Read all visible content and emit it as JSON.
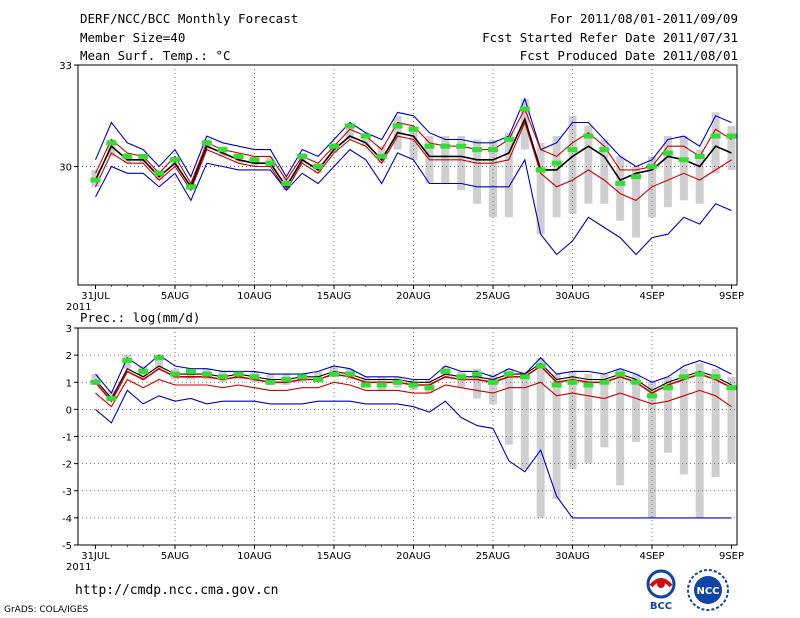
{
  "header": {
    "title": "DERF/NCC/BCC Monthly Forecast",
    "member_size": "Member Size=40",
    "variable": "Mean Surf. Temp.: °C",
    "forecast_range": "For 2011/08/01-2011/09/09",
    "started_refer": "Fcst Started Refer Date 2011/07/31",
    "produced": "Fcst Produced Date 2011/08/01"
  },
  "footer": {
    "url": "http://cmdp.ncc.cma.gov.cn",
    "grads": "GrADS: COLA/IGES",
    "logo_bcc": "BCC",
    "logo_ncc": "NCC"
  },
  "chart_data": [
    {
      "type": "line",
      "title": "Mean Surf. Temp.: °C",
      "ylim": [
        26.5,
        33
      ],
      "yticks": [
        "33",
        "30"
      ],
      "x_ticks": [
        "31JUL",
        "5AUG",
        "10AUG",
        "15AUG",
        "20AUG",
        "25AUG",
        "30AUG",
        "4SEP",
        "9SEP"
      ],
      "x_year": "2011",
      "days": 41,
      "series": [
        {
          "name": "ensemble max",
          "color": "#0000cc",
          "values": [
            30.2,
            31.3,
            30.7,
            30.5,
            30.0,
            30.5,
            29.7,
            30.9,
            30.7,
            30.6,
            30.5,
            30.5,
            29.7,
            30.5,
            30.3,
            30.8,
            31.3,
            31.0,
            30.8,
            31.6,
            31.5,
            31.0,
            30.8,
            30.8,
            30.7,
            30.7,
            30.9,
            32.0,
            30.5,
            30.7,
            31.3,
            31.3,
            30.8,
            30.3,
            30.0,
            30.2,
            30.8,
            30.9,
            30.6,
            31.5,
            31.3
          ]
        },
        {
          "name": "upper percentile",
          "color": "#cc0000",
          "values": [
            29.8,
            30.8,
            30.4,
            30.3,
            29.8,
            30.3,
            29.5,
            30.7,
            30.5,
            30.4,
            30.3,
            30.3,
            29.6,
            30.3,
            30.1,
            30.6,
            31.1,
            30.9,
            30.5,
            31.3,
            31.2,
            30.7,
            30.6,
            30.6,
            30.5,
            30.5,
            30.8,
            31.7,
            30.5,
            30.3,
            30.7,
            31.0,
            30.6,
            29.9,
            29.9,
            30.0,
            30.6,
            30.6,
            30.3,
            31.1,
            30.8
          ]
        },
        {
          "name": "ensemble mean",
          "color": "#000000",
          "values": [
            29.6,
            30.6,
            30.2,
            30.2,
            29.7,
            30.1,
            29.4,
            30.6,
            30.4,
            30.2,
            30.1,
            30.1,
            29.4,
            30.2,
            29.9,
            30.5,
            30.9,
            30.7,
            30.2,
            31.0,
            30.9,
            30.3,
            30.3,
            30.3,
            30.2,
            30.2,
            30.4,
            31.4,
            29.9,
            29.9,
            30.3,
            30.6,
            30.3,
            29.6,
            29.8,
            29.9,
            30.3,
            30.2,
            30.0,
            30.6,
            30.4
          ]
        },
        {
          "name": "lower percentile",
          "color": "#cc0000",
          "values": [
            29.4,
            30.4,
            30.1,
            30.1,
            29.6,
            30.0,
            29.3,
            30.5,
            30.3,
            30.1,
            30.0,
            30.0,
            29.3,
            30.1,
            29.8,
            30.4,
            30.8,
            30.6,
            30.1,
            30.9,
            30.8,
            30.2,
            30.2,
            30.2,
            30.1,
            30.1,
            30.2,
            31.3,
            29.8,
            29.4,
            29.6,
            29.9,
            29.6,
            29.2,
            29.0,
            29.4,
            29.6,
            29.8,
            29.6,
            29.9,
            30.2
          ]
        },
        {
          "name": "ensemble min",
          "color": "#0000cc",
          "values": [
            29.1,
            30.0,
            29.8,
            29.8,
            29.4,
            29.8,
            29.0,
            30.1,
            30.0,
            29.9,
            29.9,
            29.9,
            29.3,
            29.8,
            29.5,
            30.0,
            30.5,
            30.2,
            29.5,
            30.4,
            30.2,
            29.5,
            29.5,
            29.5,
            29.4,
            29.4,
            29.4,
            30.2,
            28.0,
            27.4,
            27.8,
            28.5,
            28.2,
            27.9,
            27.4,
            27.9,
            28.0,
            28.5,
            28.3,
            28.9,
            28.7
          ]
        },
        {
          "name": "observation",
          "color": "#33dd33",
          "values": [
            29.6,
            30.7,
            30.3,
            30.3,
            29.8,
            30.2,
            29.4,
            30.7,
            30.5,
            30.3,
            30.2,
            30.1,
            29.5,
            30.3,
            30.0,
            30.6,
            31.2,
            30.9,
            30.3,
            31.2,
            31.1,
            30.6,
            30.6,
            30.6,
            30.5,
            30.5,
            30.8,
            31.7,
            29.9,
            30.1,
            30.5,
            30.9,
            30.5,
            29.5,
            29.7,
            30.0,
            30.4,
            30.2,
            30.3,
            30.9,
            30.9
          ]
        }
      ],
      "bars": {
        "name": "spread",
        "color": "#cfcfd2",
        "low": [
          29.4,
          30.3,
          30.1,
          30.1,
          29.6,
          30.0,
          29.3,
          30.5,
          30.3,
          30.1,
          30.0,
          30.0,
          29.3,
          30.1,
          29.8,
          30.4,
          30.8,
          30.6,
          30.1,
          30.5,
          30.2,
          29.5,
          29.5,
          29.3,
          28.9,
          28.5,
          28.5,
          30.5,
          28.0,
          28.5,
          28.6,
          28.9,
          28.9,
          28.4,
          27.9,
          28.5,
          28.8,
          29.0,
          28.9,
          29.8,
          29.9
        ],
        "high": [
          29.9,
          30.8,
          30.4,
          30.3,
          29.9,
          30.3,
          29.5,
          30.8,
          30.6,
          30.4,
          30.3,
          30.3,
          29.7,
          30.4,
          30.1,
          30.7,
          31.2,
          31.0,
          30.6,
          31.5,
          31.2,
          30.9,
          30.9,
          30.9,
          30.8,
          30.8,
          31.0,
          32.0,
          30.7,
          30.9,
          31.5,
          31.2,
          30.8,
          30.3,
          30.0,
          30.3,
          30.9,
          30.9,
          30.5,
          31.6,
          31.2
        ]
      }
    },
    {
      "type": "line",
      "title": "Prec.: log(mm/d)",
      "ylim": [
        -5,
        3
      ],
      "yticks": [
        "3",
        "2",
        "1",
        "0",
        "-1",
        "-2",
        "-3",
        "-4",
        "-5"
      ],
      "x_ticks": [
        "31JUL",
        "5AUG",
        "10AUG",
        "15AUG",
        "20AUG",
        "25AUG",
        "30AUG",
        "4SEP",
        "9SEP"
      ],
      "x_year": "2011",
      "days": 41,
      "series": [
        {
          "name": "ensemble max",
          "color": "#0000cc",
          "values": [
            1.3,
            0.6,
            1.9,
            1.5,
            2.0,
            1.6,
            1.5,
            1.5,
            1.4,
            1.4,
            1.4,
            1.3,
            1.3,
            1.3,
            1.4,
            1.6,
            1.5,
            1.2,
            1.2,
            1.2,
            1.1,
            1.1,
            1.6,
            1.4,
            1.4,
            1.2,
            1.5,
            1.3,
            1.9,
            1.3,
            1.4,
            1.4,
            1.3,
            1.5,
            1.3,
            1.0,
            1.2,
            1.6,
            1.8,
            1.6,
            1.3
          ]
        },
        {
          "name": "upper percentile",
          "color": "#000000",
          "values": [
            1.1,
            0.4,
            1.5,
            1.2,
            1.6,
            1.3,
            1.3,
            1.3,
            1.2,
            1.3,
            1.2,
            1.1,
            1.1,
            1.2,
            1.2,
            1.4,
            1.3,
            1.1,
            1.1,
            1.1,
            1.0,
            1.0,
            1.3,
            1.2,
            1.2,
            1.1,
            1.3,
            1.3,
            1.7,
            1.1,
            1.2,
            1.1,
            1.1,
            1.3,
            1.1,
            0.7,
            1.0,
            1.2,
            1.4,
            1.2,
            0.9
          ]
        },
        {
          "name": "ensemble mean",
          "color": "#cc0000",
          "values": [
            1.0,
            0.3,
            1.4,
            1.1,
            1.5,
            1.2,
            1.2,
            1.2,
            1.1,
            1.2,
            1.1,
            1.0,
            1.0,
            1.1,
            1.1,
            1.3,
            1.2,
            1.0,
            1.0,
            1.0,
            0.9,
            0.9,
            1.2,
            1.1,
            1.1,
            1.0,
            1.2,
            1.2,
            1.6,
            1.0,
            1.1,
            1.0,
            1.0,
            1.2,
            1.0,
            0.6,
            0.9,
            1.1,
            1.3,
            1.1,
            0.8
          ]
        },
        {
          "name": "lower percentile",
          "color": "#cc0000",
          "values": [
            0.6,
            0.1,
            1.1,
            0.8,
            1.1,
            0.9,
            0.9,
            0.9,
            0.8,
            0.9,
            0.8,
            0.7,
            0.7,
            0.8,
            0.8,
            1.0,
            0.9,
            0.7,
            0.7,
            0.7,
            0.6,
            0.6,
            0.9,
            0.8,
            0.7,
            0.6,
            0.8,
            0.8,
            1.0,
            0.5,
            0.6,
            0.5,
            0.4,
            0.6,
            0.4,
            0.2,
            0.3,
            0.5,
            0.7,
            0.5,
            0.1
          ]
        },
        {
          "name": "ensemble min",
          "color": "#0000cc",
          "values": [
            0.0,
            -0.5,
            0.7,
            0.2,
            0.5,
            0.3,
            0.4,
            0.2,
            0.3,
            0.3,
            0.3,
            0.2,
            0.2,
            0.2,
            0.3,
            0.3,
            0.3,
            0.2,
            0.2,
            0.2,
            0.1,
            -0.1,
            0.3,
            -0.3,
            -0.6,
            -0.7,
            -1.9,
            -2.3,
            -1.5,
            -3.2,
            -4.0,
            -4.0,
            -4.0,
            -4.0,
            -4.0,
            -4.0,
            -4.0,
            -4.0,
            -4.0,
            -4.0,
            -4.0
          ]
        },
        {
          "name": "observation",
          "color": "#33dd33",
          "values": [
            1.0,
            0.4,
            1.8,
            1.4,
            1.9,
            1.3,
            1.4,
            1.3,
            1.2,
            1.3,
            1.2,
            1.0,
            1.1,
            1.2,
            1.1,
            1.3,
            1.3,
            0.9,
            0.9,
            1.0,
            0.9,
            0.8,
            1.4,
            1.2,
            1.3,
            1.0,
            1.3,
            1.2,
            1.6,
            0.9,
            1.0,
            0.9,
            1.0,
            1.3,
            1.0,
            0.5,
            0.8,
            1.2,
            1.3,
            1.2,
            0.8
          ]
        }
      ],
      "bars": {
        "name": "spread",
        "color": "#cfcfd2",
        "low": [
          0.9,
          0.3,
          1.5,
          1.1,
          1.5,
          1.1,
          1.1,
          1.1,
          1.0,
          1.1,
          1.0,
          0.9,
          0.9,
          1.0,
          1.0,
          1.2,
          1.1,
          0.8,
          0.7,
          0.8,
          0.7,
          0.6,
          1.1,
          0.8,
          0.4,
          0.2,
          -1.3,
          -2.2,
          -4.0,
          -3.3,
          -2.2,
          -2.0,
          -1.4,
          -2.8,
          -1.2,
          -4.0,
          -1.6,
          -2.4,
          -4.0,
          -2.5,
          -2.0
        ],
        "high": [
          1.3,
          0.7,
          2.0,
          1.6,
          2.0,
          1.5,
          1.5,
          1.5,
          1.4,
          1.4,
          1.4,
          1.3,
          1.3,
          1.3,
          1.4,
          1.6,
          1.5,
          1.2,
          1.2,
          1.2,
          1.1,
          1.1,
          1.6,
          1.4,
          1.5,
          1.3,
          1.5,
          1.4,
          1.9,
          1.3,
          1.4,
          1.3,
          1.3,
          1.5,
          1.3,
          1.0,
          1.2,
          1.5,
          1.7,
          1.5,
          1.2
        ]
      }
    }
  ]
}
